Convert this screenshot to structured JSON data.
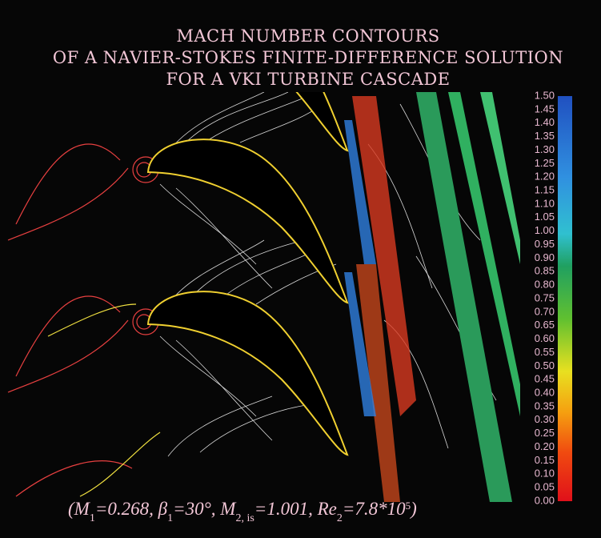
{
  "title": [
    "MACH NUMBER CONTOURS",
    "OF A NAVIER-STOKES FINITE-DIFFERENCE SOLUTION",
    "FOR A VKI TURBINE CASCADE"
  ],
  "colorbar": {
    "labels": [
      "1.50",
      "1.45",
      "1.40",
      "1.35",
      "1.30",
      "1.25",
      "1.20",
      "1.15",
      "1.10",
      "1.05",
      "1.00",
      "0.95",
      "0.90",
      "0.85",
      "0.80",
      "0.75",
      "0.70",
      "0.65",
      "0.60",
      "0.55",
      "0.50",
      "0.45",
      "0.40",
      "0.35",
      "0.30",
      "0.25",
      "0.20",
      "0.15",
      "0.10",
      "0.05",
      "0.00"
    ]
  },
  "caption": [
    {
      "text": "(M"
    },
    {
      "text": "1",
      "sub": true
    },
    {
      "text": "=0.268,   β"
    },
    {
      "text": "1",
      "sub": true
    },
    {
      "text": "=30°,   M"
    },
    {
      "text": "2, is",
      "sub": true
    },
    {
      "text": "=1.001,   Re"
    },
    {
      "text": "2",
      "sub": true
    },
    {
      "text": "=7.8*10"
    },
    {
      "text": "5",
      "sup": true
    },
    {
      "text": ")"
    }
  ]
}
